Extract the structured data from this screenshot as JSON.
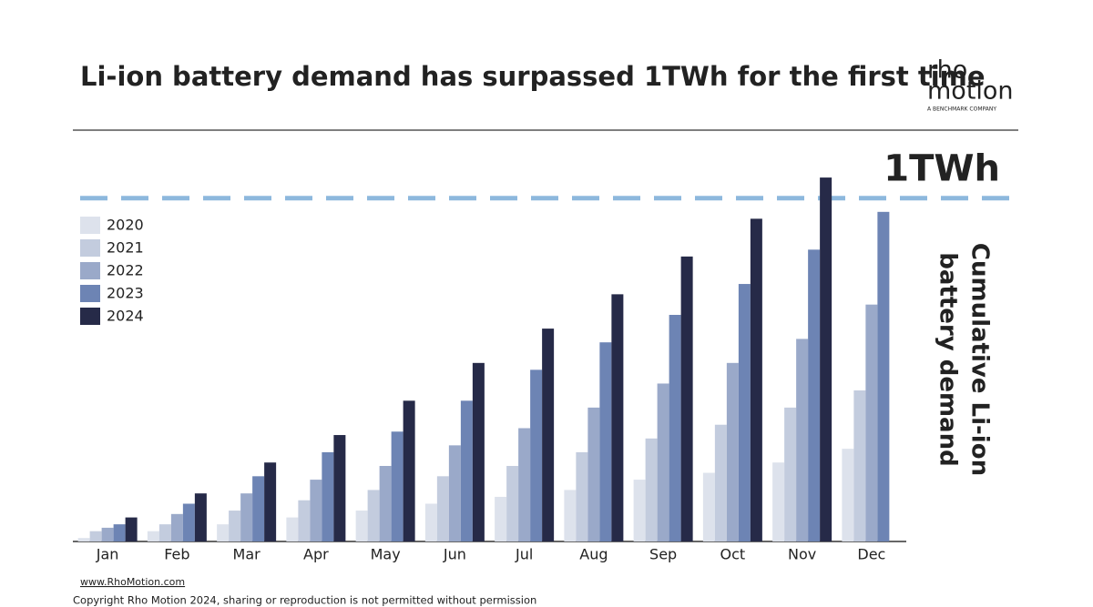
{
  "chart_data": {
    "type": "bar",
    "title": "Li-ion battery demand has surpassed 1TWh for the first time",
    "logo": {
      "line1": "rho",
      "line2": "motion",
      "tagline": "A BENCHMARK COMPANY"
    },
    "y_label_lines": [
      "Cumulative Li-ion",
      "battery demand"
    ],
    "reference_line": {
      "value": 1,
      "label": "1TWh",
      "color": "#8db8dd"
    },
    "ylim": [
      0,
      1.1
    ],
    "categories": [
      "Jan",
      "Feb",
      "Mar",
      "Apr",
      "May",
      "Jun",
      "Jul",
      "Aug",
      "Sep",
      "Oct",
      "Nov",
      "Dec"
    ],
    "series": [
      {
        "name": "2020",
        "color": "#dde2ec",
        "values": [
          0.01,
          0.03,
          0.05,
          0.07,
          0.09,
          0.11,
          0.13,
          0.15,
          0.18,
          0.2,
          0.23,
          0.27
        ]
      },
      {
        "name": "2021",
        "color": "#c3ccde",
        "values": [
          0.03,
          0.05,
          0.09,
          0.12,
          0.15,
          0.19,
          0.22,
          0.26,
          0.3,
          0.34,
          0.39,
          0.44
        ]
      },
      {
        "name": "2022",
        "color": "#9aa9c9",
        "values": [
          0.04,
          0.08,
          0.14,
          0.18,
          0.22,
          0.28,
          0.33,
          0.39,
          0.46,
          0.52,
          0.59,
          0.69
        ]
      },
      {
        "name": "2023",
        "color": "#6d84b4",
        "values": [
          0.05,
          0.11,
          0.19,
          0.26,
          0.32,
          0.41,
          0.5,
          0.58,
          0.66,
          0.75,
          0.85,
          0.96
        ]
      },
      {
        "name": "2024",
        "color": "#262a48",
        "values": [
          0.07,
          0.14,
          0.23,
          0.31,
          0.41,
          0.52,
          0.62,
          0.72,
          0.83,
          0.94,
          1.06,
          null
        ]
      }
    ],
    "legend": "top-left",
    "footer": {
      "website": "www.RhoMotion.com",
      "copyright": "Copyright Rho Motion 2024, sharing or reproduction is not permitted without permission"
    }
  }
}
